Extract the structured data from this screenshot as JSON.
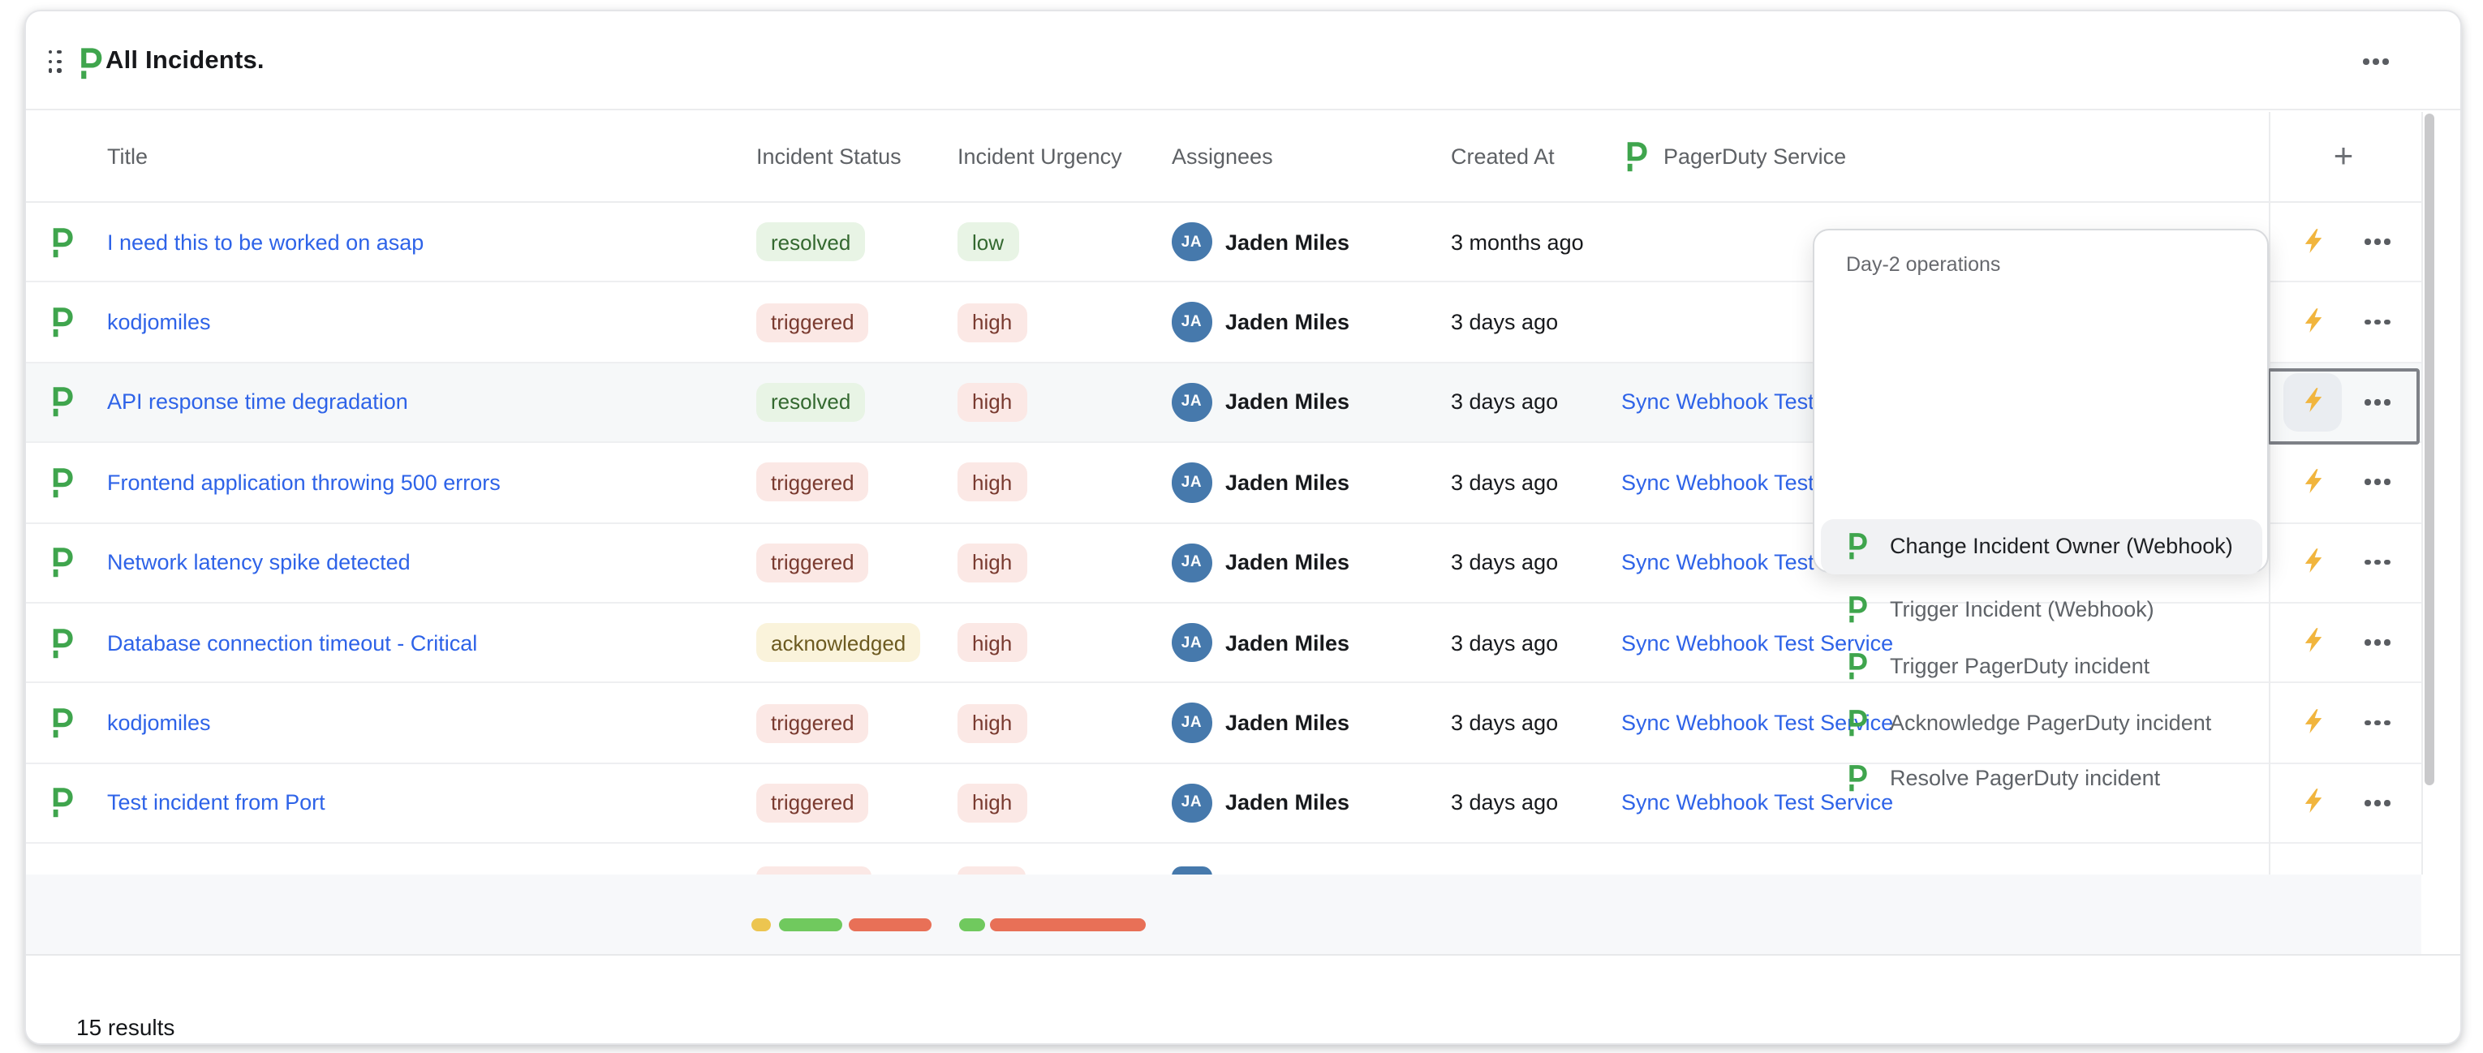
{
  "widget": {
    "title": "All Incidents.",
    "results_count": "15 results"
  },
  "columns": {
    "title": "Title",
    "status": "Incident Status",
    "urgency": "Incident Urgency",
    "assignees": "Assignees",
    "created": "Created At",
    "service": "PagerDuty Service",
    "add_label": "+"
  },
  "rows": [
    {
      "title": "I need this to be worked on asap",
      "status": "resolved",
      "status_variant": "green",
      "urgency": "low",
      "urgency_variant": "green",
      "initials": "JA",
      "assignee": "Jaden Miles",
      "created": "3 months ago",
      "service": ""
    },
    {
      "title": "kodjomiles",
      "status": "triggered",
      "status_variant": "red",
      "urgency": "high",
      "urgency_variant": "red",
      "initials": "JA",
      "assignee": "Jaden Miles",
      "created": "3 days ago",
      "service": ""
    },
    {
      "title": "API response time degradation",
      "status": "resolved",
      "status_variant": "green",
      "urgency": "high",
      "urgency_variant": "red",
      "initials": "JA",
      "assignee": "Jaden Miles",
      "created": "3 days ago",
      "service": "Sync Webhook Test Service"
    },
    {
      "title": "Frontend application throwing 500 errors",
      "status": "triggered",
      "status_variant": "red",
      "urgency": "high",
      "urgency_variant": "red",
      "initials": "JA",
      "assignee": "Jaden Miles",
      "created": "3 days ago",
      "service": "Sync Webhook Test Service"
    },
    {
      "title": "Network latency spike detected",
      "status": "triggered",
      "status_variant": "red",
      "urgency": "high",
      "urgency_variant": "red",
      "initials": "JA",
      "assignee": "Jaden Miles",
      "created": "3 days ago",
      "service": "Sync Webhook Test Service"
    },
    {
      "title": "Database connection timeout - Critical",
      "status": "acknowledged",
      "status_variant": "amber",
      "urgency": "high",
      "urgency_variant": "red",
      "initials": "JA",
      "assignee": "Jaden Miles",
      "created": "3 days ago",
      "service": "Sync Webhook Test Service"
    },
    {
      "title": "kodjomiles",
      "status": "triggered",
      "status_variant": "red",
      "urgency": "high",
      "urgency_variant": "red",
      "initials": "JA",
      "assignee": "Jaden Miles",
      "created": "3 days ago",
      "service": "Sync Webhook Test Service"
    },
    {
      "title": "Test incident from Port",
      "status": "triggered",
      "status_variant": "red",
      "urgency": "high",
      "urgency_variant": "red",
      "initials": "JA",
      "assignee": "Jaden Miles",
      "created": "3 days ago",
      "service": "Sync Webhook Test Service"
    }
  ],
  "partial_row": {
    "status_variant": "red",
    "urgency_variant": "red"
  },
  "context_menu": {
    "header": "Day-2 operations",
    "items": [
      {
        "label": "Change Incident Owner (Webhook)",
        "highlighted": true
      },
      {
        "label": "Trigger Incident (Webhook)",
        "highlighted": false
      },
      {
        "label": "Trigger PagerDuty incident",
        "highlighted": false
      },
      {
        "label": "Acknowledge PagerDuty incident",
        "highlighted": false
      },
      {
        "label": "Resolve PagerDuty incident",
        "highlighted": false
      }
    ]
  },
  "skeleton_pills": [
    {
      "color": "#ecc550"
    },
    {
      "color": "#70c95e"
    },
    {
      "color": "#e87057"
    },
    {
      "color": "#70c95e"
    },
    {
      "color": "#e87057"
    }
  ],
  "colors": {
    "pagerduty_green": "#3fa54d",
    "link_blue": "#2e63e8",
    "bolt_yellow": "#f1b53d",
    "badge_green_bg": "#e8f4e5",
    "badge_green_text": "#33682f",
    "badge_red_bg": "#fbe8e5",
    "badge_red_text": "#793a2f",
    "badge_amber_bg": "#faf3db",
    "badge_amber_text": "#6c5a20",
    "avatar_blue": "#4679ac",
    "row_highlight": "#f6f8f9"
  }
}
